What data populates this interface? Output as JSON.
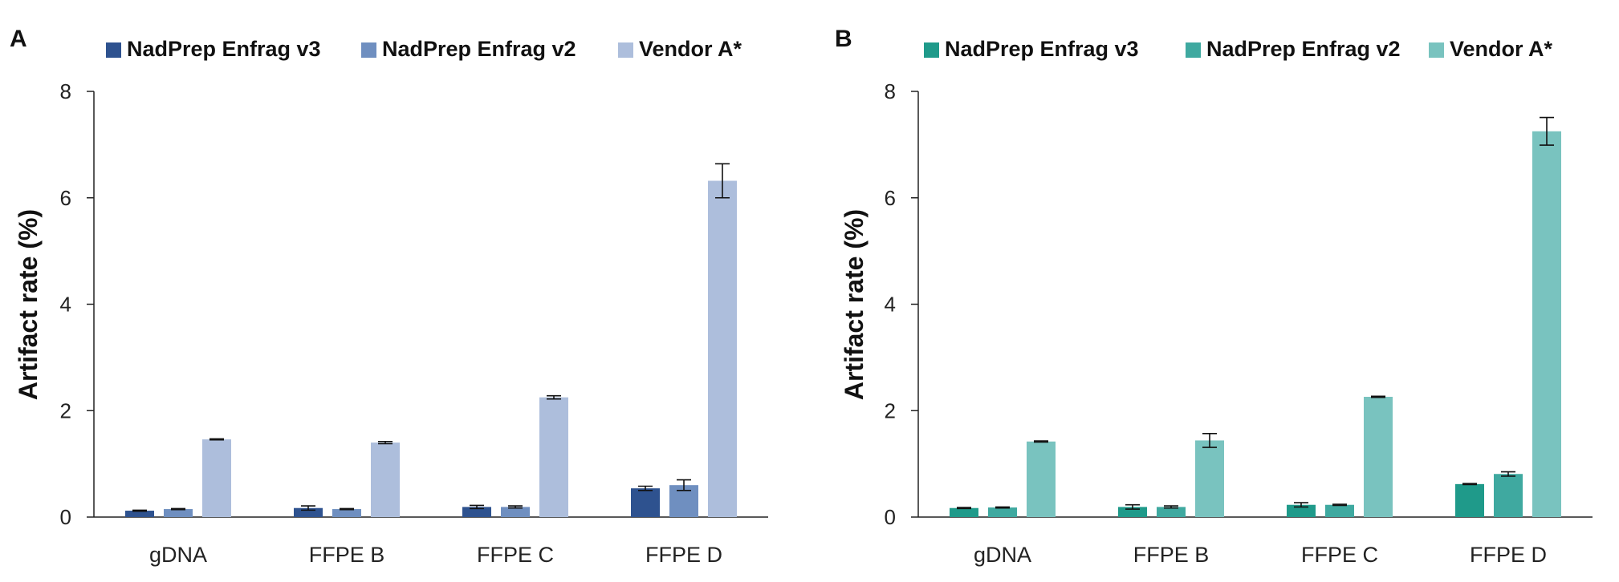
{
  "chart_data": [
    {
      "type": "bar",
      "panel_label": "A",
      "title": "",
      "xlabel": "",
      "ylabel": "Artifact rate (%)",
      "ylim": [
        0,
        8
      ],
      "yticks": [
        "0",
        "2",
        "4",
        "6",
        "8"
      ],
      "grid": false,
      "legend_position": "top",
      "categories": [
        "gDNA",
        "FFPE B",
        "FFPE C",
        "FFPE D"
      ],
      "series": [
        {
          "name": "NadPrep Enfrag v3",
          "color": "#2e528f",
          "values": [
            0.12,
            0.17,
            0.19,
            0.54
          ],
          "errors": [
            0.01,
            0.04,
            0.03,
            0.04
          ]
        },
        {
          "name": "NadPrep Enfrag v2",
          "color": "#6f8fc0",
          "values": [
            0.15,
            0.15,
            0.19,
            0.6
          ],
          "errors": [
            0.01,
            0.01,
            0.02,
            0.1
          ]
        },
        {
          "name": "Vendor A*",
          "color": "#adbedc",
          "values": [
            1.46,
            1.4,
            2.25,
            6.32
          ],
          "errors": [
            0.01,
            0.02,
            0.03,
            0.32
          ]
        }
      ]
    },
    {
      "type": "bar",
      "panel_label": "B",
      "title": "",
      "xlabel": "",
      "ylabel": "Artifact rate (%)",
      "ylim": [
        0,
        8
      ],
      "yticks": [
        "0",
        "2",
        "4",
        "6",
        "8"
      ],
      "grid": false,
      "legend_position": "top",
      "categories": [
        "gDNA",
        "FFPE B",
        "FFPE C",
        "FFPE D"
      ],
      "series": [
        {
          "name": "NadPrep Enfrag v3",
          "color": "#1f9a8a",
          "values": [
            0.17,
            0.19,
            0.23,
            0.62
          ],
          "errors": [
            0.01,
            0.04,
            0.04,
            0.01
          ]
        },
        {
          "name": "NadPrep Enfrag v2",
          "color": "#3fa9a0",
          "values": [
            0.18,
            0.19,
            0.23,
            0.81
          ],
          "errors": [
            0.01,
            0.02,
            0.01,
            0.04
          ]
        },
        {
          "name": "Vendor A*",
          "color": "#79c3bf",
          "values": [
            1.42,
            1.44,
            2.26,
            7.25
          ],
          "errors": [
            0.01,
            0.13,
            0.01,
            0.26
          ]
        }
      ]
    }
  ]
}
